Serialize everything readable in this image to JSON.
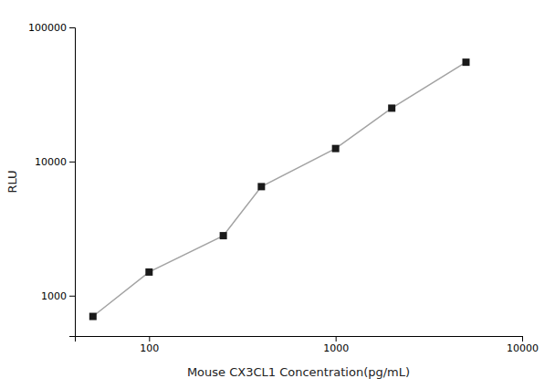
{
  "chart_data": {
    "type": "line",
    "x": [
      50,
      100,
      250,
      400,
      1000,
      2000,
      5000
    ],
    "values": [
      700,
      1500,
      2800,
      6500,
      12500,
      25000,
      55000
    ],
    "xlabel": "Mouse CX3CL1 Concentration(pg/mL)",
    "ylabel": "RLU",
    "xlim": [
      40,
      10000
    ],
    "ylim": [
      500,
      100000
    ],
    "xticks": [
      100,
      1000,
      10000
    ],
    "yticks": [
      1000,
      10000,
      100000
    ],
    "log": true,
    "grid": false,
    "color": "#1a1a1a",
    "marker": "square"
  }
}
